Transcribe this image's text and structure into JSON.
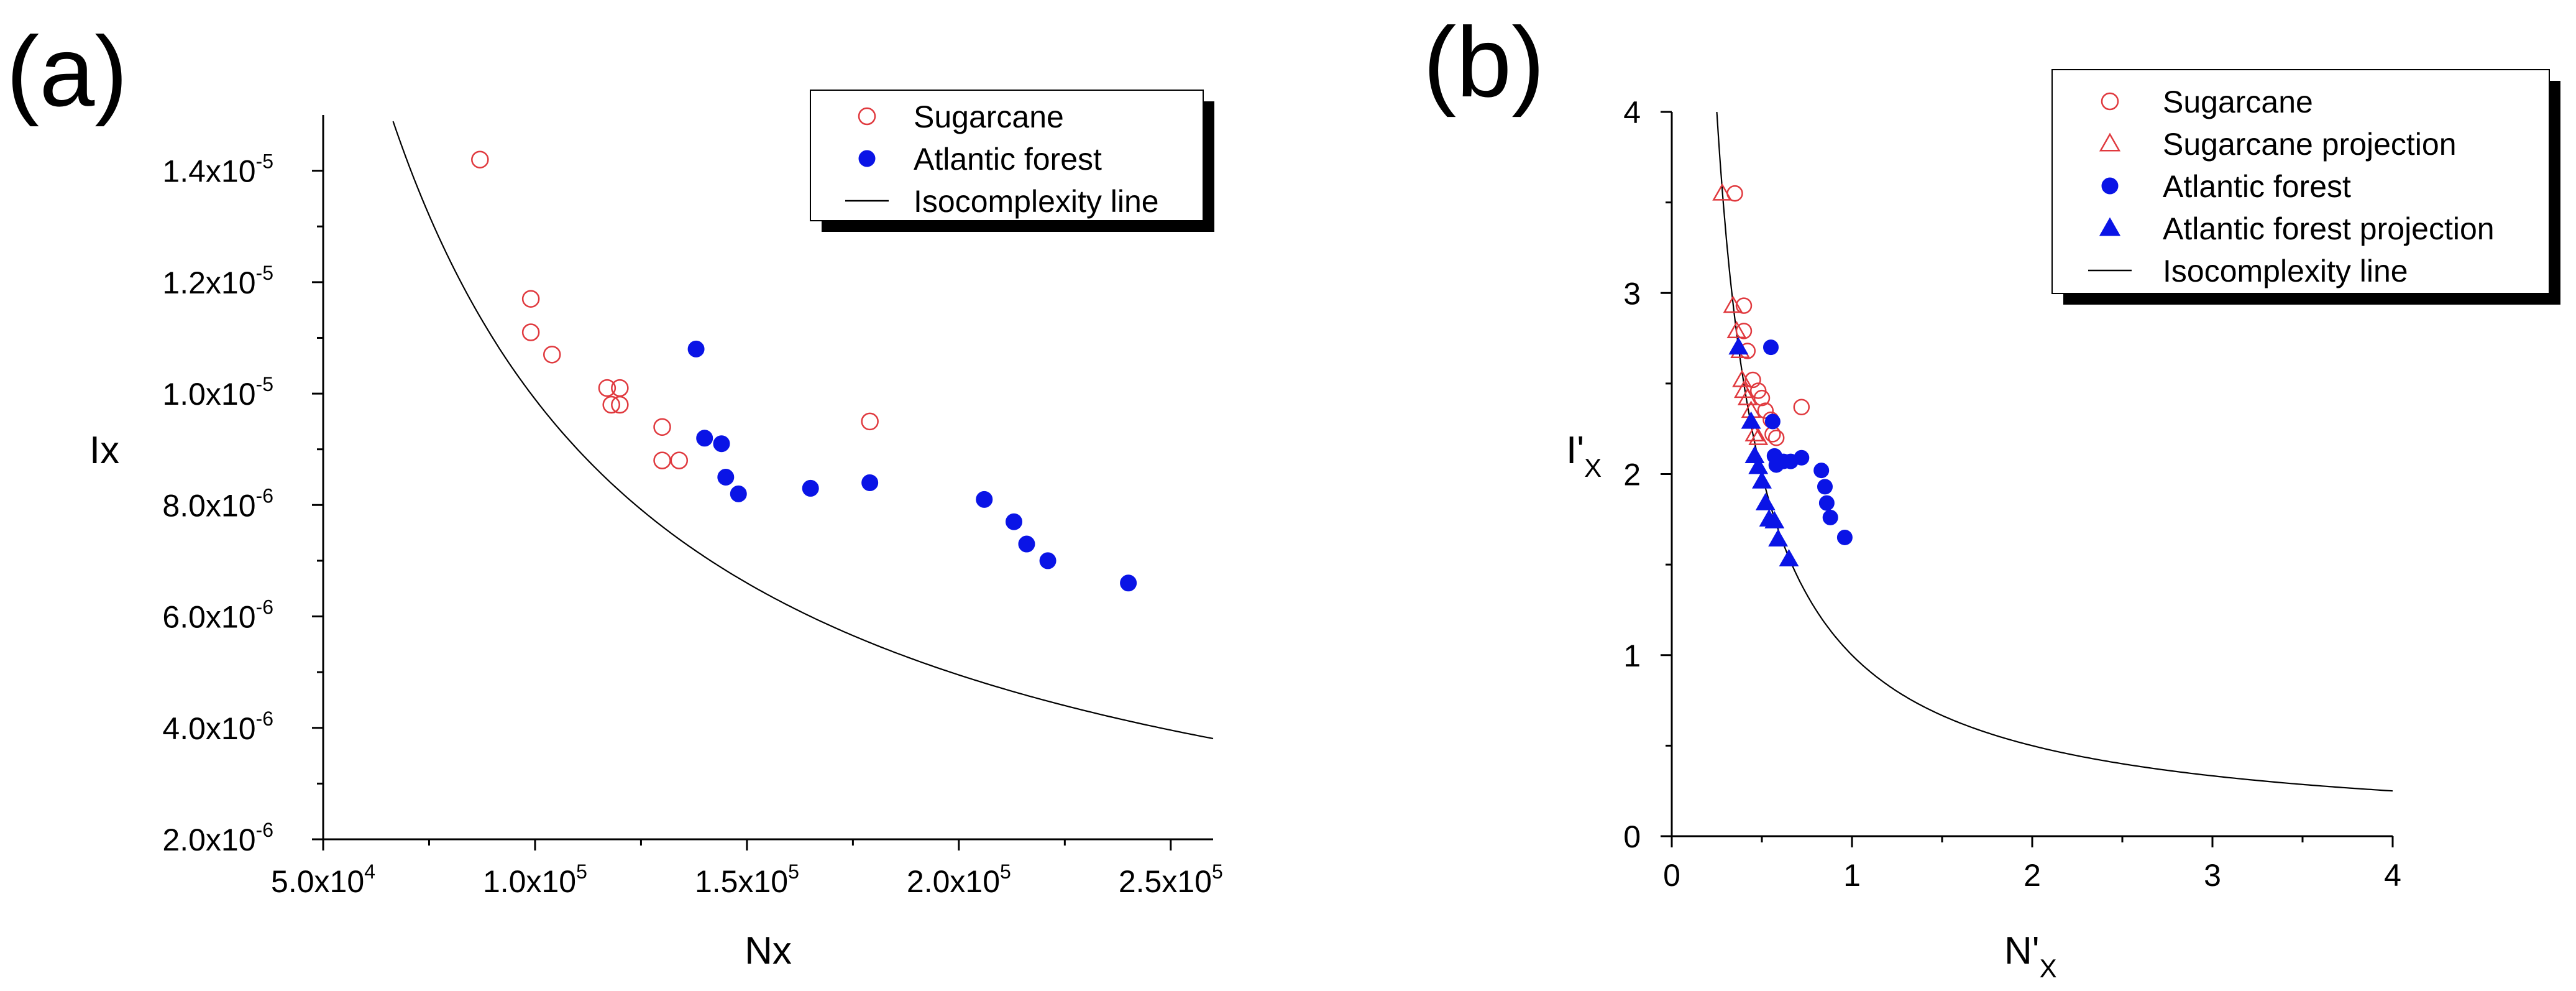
{
  "chart_data": [
    {
      "type": "scatter",
      "panel_label": "(a)",
      "xlabel": "Nx",
      "ylabel": "Ix",
      "xlim": [
        50000,
        260000
      ],
      "ylim": [
        2e-06,
        1.5e-05
      ],
      "x_ticks": [
        {
          "value": 50000,
          "mantissa": "5.0x10",
          "exp": "4"
        },
        {
          "value": 100000,
          "mantissa": "1.0x10",
          "exp": "5"
        },
        {
          "value": 150000,
          "mantissa": "1.5x10",
          "exp": "5"
        },
        {
          "value": 200000,
          "mantissa": "2.0x10",
          "exp": "5"
        },
        {
          "value": 250000,
          "mantissa": "2.5x10",
          "exp": "5"
        }
      ],
      "y_ticks": [
        {
          "value": 2e-06,
          "mantissa": "2.0x10",
          "exp": "-6"
        },
        {
          "value": 4e-06,
          "mantissa": "4.0x10",
          "exp": "-6"
        },
        {
          "value": 6e-06,
          "mantissa": "6.0x10",
          "exp": "-6"
        },
        {
          "value": 8e-06,
          "mantissa": "8.0x10",
          "exp": "-6"
        },
        {
          "value": 1e-05,
          "mantissa": "1.0x10",
          "exp": "-5"
        },
        {
          "value": 1.2e-05,
          "mantissa": "1.2x10",
          "exp": "-5"
        },
        {
          "value": 1.4e-05,
          "mantissa": "1.4x10",
          "exp": "-5"
        }
      ],
      "series": [
        {
          "name": "Sugarcane",
          "marker": "open-circle",
          "color": "#e0393e",
          "x": [
            87000,
            99000,
            99000,
            104000,
            117000,
            118000,
            120000,
            120000,
            130000,
            130000,
            134000,
            179000
          ],
          "y": [
            1.42e-05,
            1.17e-05,
            1.11e-05,
            1.07e-05,
            1.01e-05,
            9.8e-06,
            1.01e-05,
            9.8e-06,
            9.4e-06,
            8.8e-06,
            8.8e-06,
            9.5e-06
          ]
        },
        {
          "name": "Atlantic forest",
          "marker": "filled-circle",
          "color": "#0a14e6",
          "x": [
            138000,
            140000,
            144000,
            145000,
            148000,
            165000,
            179000,
            206000,
            213000,
            216000,
            221000,
            240000
          ],
          "y": [
            1.08e-05,
            9.2e-06,
            9.1e-06,
            8.5e-06,
            8.2e-06,
            8.3e-06,
            8.4e-06,
            8.1e-06,
            7.7e-06,
            7.3e-06,
            7e-06,
            6.6e-06
          ]
        },
        {
          "name": "Isocomplexity line",
          "marker": "line",
          "color": "#000000",
          "formula": "Ix = 0.99 / Nx",
          "x_range": [
            66500,
            260000
          ]
        }
      ],
      "legend": {
        "placement": "top-right",
        "entries": [
          "Sugarcane",
          "Atlantic forest",
          "Isocomplexity line"
        ]
      }
    },
    {
      "type": "scatter",
      "panel_label": "(b)",
      "xlabel_main": "N'",
      "xlabel_sub": "X",
      "ylabel_main": "I'",
      "ylabel_sub": "X",
      "xlim": [
        0,
        4
      ],
      "ylim": [
        0,
        4
      ],
      "x_ticks": [
        "0",
        "1",
        "2",
        "3",
        "4"
      ],
      "y_ticks": [
        "0",
        "1",
        "2",
        "3",
        "4"
      ],
      "series": [
        {
          "name": "Sugarcane",
          "marker": "open-circle",
          "color": "#e0393e",
          "x": [
            0.35,
            0.4,
            0.4,
            0.42,
            0.45,
            0.48,
            0.5,
            0.52,
            0.55,
            0.56,
            0.58,
            0.72
          ],
          "y": [
            3.55,
            2.93,
            2.79,
            2.68,
            2.52,
            2.46,
            2.42,
            2.35,
            2.3,
            2.22,
            2.2,
            2.37
          ]
        },
        {
          "name": "Sugarcane projection",
          "marker": "open-triangle",
          "color": "#e0393e",
          "x": [
            0.28,
            0.34,
            0.36,
            0.38,
            0.39,
            0.4,
            0.42,
            0.44,
            0.46,
            0.48
          ],
          "y": [
            3.55,
            2.93,
            2.79,
            2.68,
            2.52,
            2.46,
            2.42,
            2.35,
            2.22,
            2.2
          ]
        },
        {
          "name": "Atlantic forest",
          "marker": "filled-circle",
          "color": "#0a14e6",
          "x": [
            0.55,
            0.56,
            0.57,
            0.58,
            0.62,
            0.66,
            0.72,
            0.83,
            0.85,
            0.86,
            0.88,
            0.96
          ],
          "y": [
            2.7,
            2.29,
            2.1,
            2.05,
            2.07,
            2.07,
            2.09,
            2.02,
            1.93,
            1.84,
            1.76,
            1.65
          ]
        },
        {
          "name": "Atlantic forest projection",
          "marker": "filled-triangle",
          "color": "#0a14e6",
          "x": [
            0.37,
            0.44,
            0.46,
            0.48,
            0.5,
            0.52,
            0.54,
            0.57,
            0.59,
            0.65
          ],
          "y": [
            2.7,
            2.29,
            2.1,
            2.04,
            1.96,
            1.84,
            1.75,
            1.74,
            1.64,
            1.53
          ]
        },
        {
          "name": "Isocomplexity line",
          "marker": "line",
          "color": "#000000",
          "formula": "I'x = 1 / N'x",
          "x_range": [
            0.25,
            4
          ]
        }
      ],
      "legend": {
        "placement": "top-right",
        "entries": [
          "Sugarcane",
          "Sugarcane projection",
          "Atlantic forest",
          "Atlantic forest projection",
          "Isocomplexity line"
        ]
      }
    }
  ]
}
